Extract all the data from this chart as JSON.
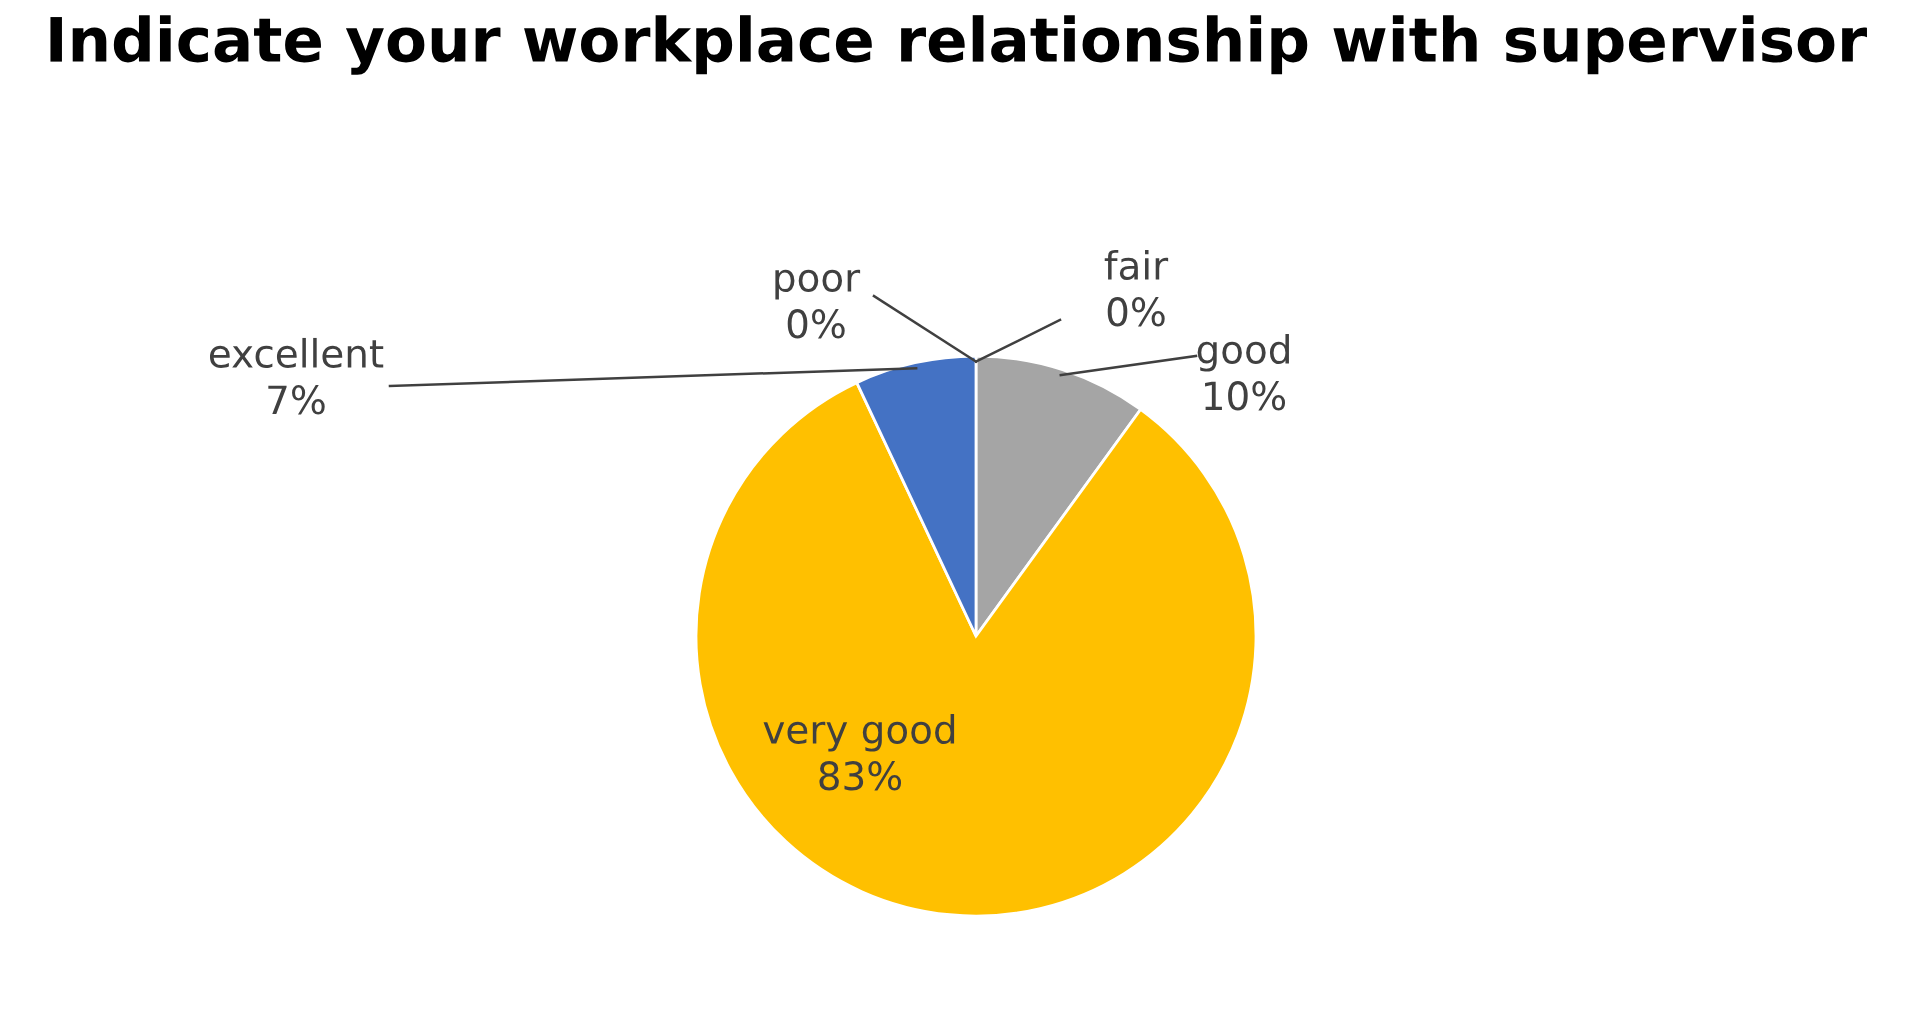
{
  "chart_data": {
    "type": "pie",
    "title": "Indicate your workplace relationship with supervisor",
    "categories": [
      "poor",
      "fair",
      "good",
      "very good",
      "excellent"
    ],
    "values": [
      0,
      0,
      10,
      83,
      7
    ],
    "colors": [
      "#ed7d31",
      "#5b9bd5",
      "#a5a5a5",
      "#ffc000",
      "#4472c4"
    ],
    "value_labels": [
      "0%",
      "0%",
      "10%",
      "83%",
      "7%"
    ],
    "legend": false
  }
}
